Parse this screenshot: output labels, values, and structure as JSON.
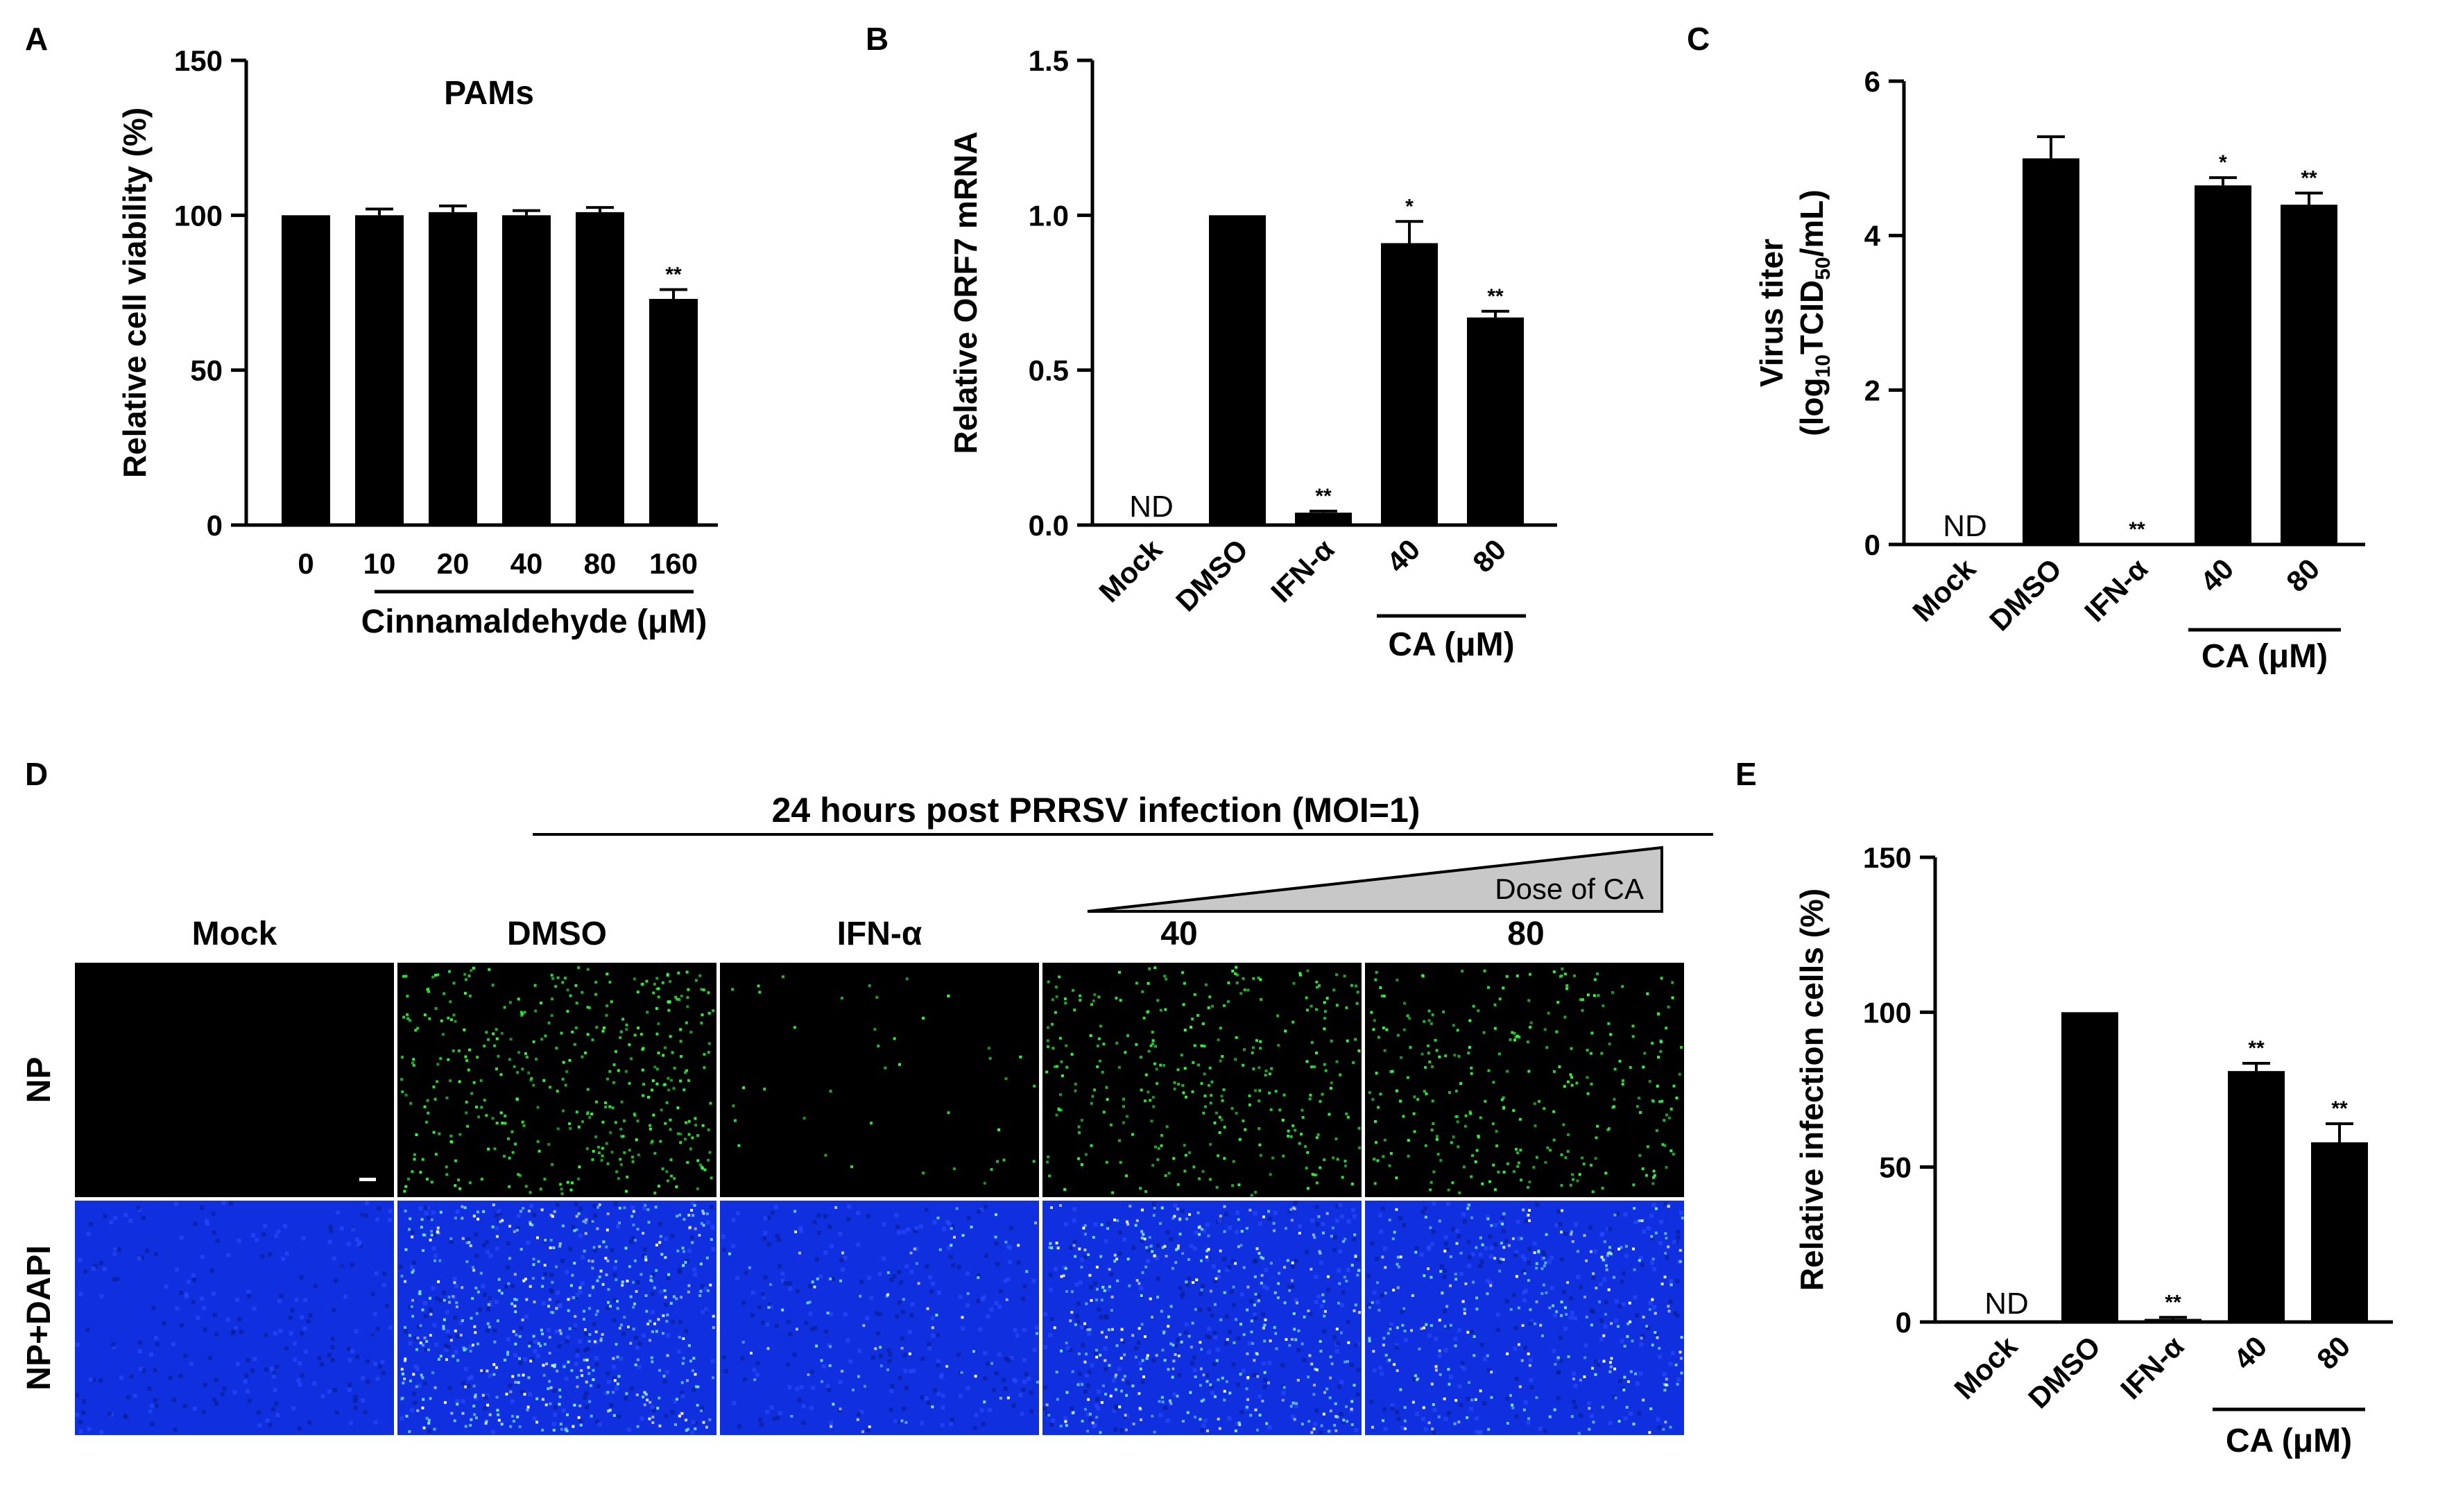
{
  "panels": {
    "A": "A",
    "B": "B",
    "C": "C",
    "D": "D",
    "E": "E"
  },
  "chart_data": [
    {
      "panel": "A",
      "type": "bar",
      "title": "PAMs",
      "ylabel": "Relative cell viability (%)",
      "xlabel": "Cinnamaldehyde (μM)",
      "ylim": [
        0,
        150
      ],
      "yticks": [
        "0",
        "50",
        "100",
        "150"
      ],
      "ytick_values": [
        0,
        50,
        100,
        150
      ],
      "categories": [
        "0",
        "10",
        "20",
        "40",
        "80",
        "160"
      ],
      "values": [
        100,
        100,
        101,
        100,
        101,
        73
      ],
      "errors": [
        0,
        2,
        2,
        1.5,
        1.5,
        3
      ],
      "significance": [
        "",
        "",
        "",
        "",
        "",
        "**"
      ],
      "nd": [
        "",
        "",
        "",
        "",
        "",
        ""
      ],
      "bracket_label": "Cinnamaldehyde (μM)"
    },
    {
      "panel": "B",
      "type": "bar",
      "ylabel": "Relative ORF7 mRNA",
      "ylim": [
        0,
        1.5
      ],
      "yticks": [
        "0.0",
        "0.5",
        "1.0",
        "1.5"
      ],
      "ytick_values": [
        0,
        0.5,
        1.0,
        1.5
      ],
      "categories": [
        "Mock",
        "DMSO",
        "IFN-α",
        "40",
        "80"
      ],
      "values": [
        0,
        1.0,
        0.04,
        0.91,
        0.67
      ],
      "errors": [
        0,
        0,
        0.005,
        0.07,
        0.02
      ],
      "significance": [
        "",
        "",
        "**",
        "*",
        "**"
      ],
      "nd": [
        "ND",
        "",
        "",
        "",
        ""
      ],
      "bracket_label": "CA (μM)"
    },
    {
      "panel": "C",
      "type": "bar",
      "ylabel_line1": "Virus titer",
      "ylabel_line2_pre": "(log",
      "ylabel_line2_sub1": "10",
      "ylabel_line2_mid": "TCID",
      "ylabel_line2_sub2": "50",
      "ylabel_line2_post": "/mL)",
      "ylim": [
        0,
        6
      ],
      "yticks": [
        "0",
        "2",
        "4",
        "6"
      ],
      "ytick_values": [
        0,
        2,
        4,
        6
      ],
      "categories": [
        "Mock",
        "DMSO",
        "IFN-α",
        "40",
        "80"
      ],
      "values": [
        0,
        5.0,
        0,
        4.65,
        4.4
      ],
      "errors": [
        0,
        0.28,
        0,
        0.1,
        0.15
      ],
      "significance": [
        "",
        "",
        "**",
        "*",
        "**"
      ],
      "nd": [
        "ND",
        "",
        "",
        "",
        ""
      ],
      "bracket_label": "CA (μM)"
    },
    {
      "panel": "E",
      "type": "bar",
      "ylabel": "Relative infection cells (%)",
      "ylim": [
        0,
        150
      ],
      "yticks": [
        "0",
        "50",
        "100",
        "150"
      ],
      "ytick_values": [
        0,
        50,
        100,
        150
      ],
      "categories": [
        "Mock",
        "DMSO",
        "IFN-α",
        "40",
        "80"
      ],
      "values": [
        0,
        100,
        1,
        81,
        58
      ],
      "errors": [
        0,
        0,
        0.5,
        2.5,
        6
      ],
      "significance": [
        "",
        "",
        "**",
        "**",
        "**"
      ],
      "nd": [
        "ND",
        "",
        "",
        "",
        ""
      ],
      "bracket_label": "CA (μM)"
    }
  ],
  "panel_D": {
    "header": "24 hours post PRRSV infection (MOI=1)",
    "dose_label": "Dose of CA",
    "columns": [
      "Mock",
      "DMSO",
      "IFN-α",
      "40",
      "80"
    ],
    "rows": [
      "NP",
      "NP+DAPI"
    ],
    "np_color": "#33ff44",
    "dapi_color": "#1030e0",
    "green_density": [
      0,
      420,
      40,
      330,
      300
    ],
    "blue_green_density": [
      0,
      520,
      90,
      420,
      300
    ]
  }
}
